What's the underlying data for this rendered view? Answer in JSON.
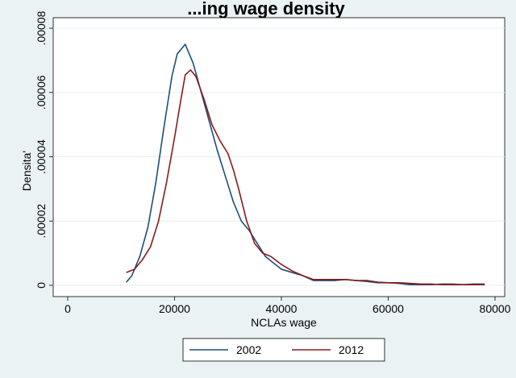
{
  "chart_data": {
    "type": "line",
    "title": "...ing wage density",
    "xlabel": "NCLAs wage",
    "ylabel": "Densita'",
    "xlim": [
      0,
      80000
    ],
    "ylim": [
      0,
      8e-05
    ],
    "x_ticks": [
      0,
      20000,
      40000,
      60000,
      80000
    ],
    "x_tick_labels": [
      "0",
      "20000",
      "40000",
      "60000",
      "80000"
    ],
    "y_ticks": [
      0,
      2e-05,
      4e-05,
      6e-05,
      8e-05
    ],
    "y_tick_labels": [
      "0",
      ".00002",
      ".00004",
      ".00006",
      ".00008"
    ],
    "grid": "horizontal",
    "legend_position": "bottom",
    "series": [
      {
        "name": "2002",
        "color": "#1f4e79",
        "x": [
          11000,
          12000,
          13500,
          15000,
          16500,
          18000,
          19500,
          20500,
          22000,
          23500,
          25000,
          26500,
          28000,
          29500,
          31000,
          32500,
          34000,
          35500,
          37000,
          38500,
          40000,
          42000,
          44000,
          46000,
          48000,
          50000,
          52000,
          54000,
          56000,
          58000,
          60000,
          62000,
          64000,
          66000,
          68000,
          70000,
          72000,
          74000,
          76000,
          78000
        ],
        "y": [
          1e-06,
          3e-06,
          9e-06,
          1.8e-05,
          3.2e-05,
          4.9e-05,
          6.5e-05,
          7.2e-05,
          7.5e-05,
          6.9e-05,
          6e-05,
          5.1e-05,
          4.2e-05,
          3.4e-05,
          2.6e-05,
          2e-05,
          1.7e-05,
          1.3e-05,
          9e-06,
          7e-06,
          5e-06,
          4e-06,
          3e-06,
          1.5e-06,
          1.5e-06,
          1.5e-06,
          1.8e-06,
          1.5e-06,
          1.2e-06,
          8e-07,
          8e-07,
          6e-07,
          2e-07,
          2e-07,
          2e-07,
          4e-07,
          4e-07,
          2e-07,
          4e-07,
          4e-07
        ]
      },
      {
        "name": "2012",
        "color": "#8b1a1a",
        "x": [
          11000,
          12500,
          14000,
          15500,
          17000,
          18500,
          20000,
          21000,
          22000,
          23000,
          24000,
          25500,
          27000,
          28500,
          30000,
          31000,
          32000,
          33500,
          35000,
          36500,
          38000,
          40000,
          42000,
          44000,
          46000,
          48000,
          50000,
          52000,
          54000,
          56000,
          58000,
          60000,
          62000,
          64000,
          66000,
          68000,
          70000,
          72000,
          74000,
          76000,
          78000
        ],
        "y": [
          4e-06,
          5e-06,
          8e-06,
          1.2e-05,
          2e-05,
          3.2e-05,
          4.6e-05,
          5.6e-05,
          6.55e-05,
          6.7e-05,
          6.5e-05,
          5.8e-05,
          5e-05,
          4.5e-05,
          4.1e-05,
          3.6e-05,
          3e-05,
          2e-05,
          1.3e-05,
          1e-05,
          9e-06,
          6.5e-06,
          4.5e-06,
          3e-06,
          1.8e-06,
          1.8e-06,
          1.8e-06,
          1.8e-06,
          1.5e-06,
          1.5e-06,
          1e-06,
          8e-07,
          8e-07,
          6e-07,
          4e-07,
          4e-07,
          2e-07,
          2e-07,
          2e-07,
          2e-07,
          2e-07
        ]
      }
    ]
  }
}
